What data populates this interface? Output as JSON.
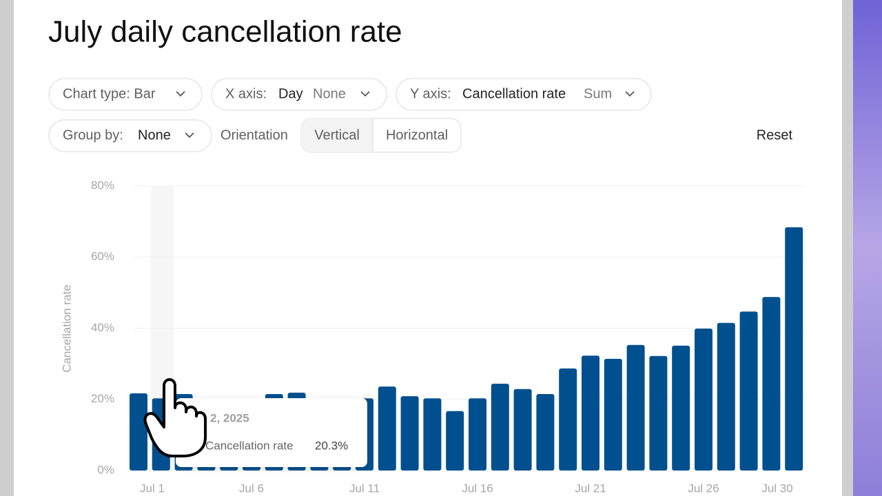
{
  "controls": {
    "chart_type": "Chart type: Bar",
    "x_axis": {
      "label": "X axis:",
      "field": "Day",
      "agg": "None"
    },
    "y_axis": {
      "label": "Y axis:",
      "field": "Cancellation rate",
      "agg": "Sum"
    },
    "group_by": {
      "label": "Group by:",
      "field": "None"
    },
    "orientation": {
      "label": "Orientation",
      "options": [
        "Vertical",
        "Horizontal"
      ]
    },
    "reset": "Reset"
  },
  "tooltip": {
    "date": "2, 2025",
    "label": "Cancellation rate",
    "value": "20.3%"
  },
  "chart_data": {
    "type": "bar",
    "title": "July daily cancellation rate",
    "ylabel": "Cancellation rate",
    "categories": [
      "Jul 1",
      null,
      null,
      null,
      null,
      "Jul 6",
      null,
      null,
      null,
      null,
      "Jul 11",
      null,
      null,
      null,
      null,
      "Jul 16",
      null,
      null,
      null,
      null,
      "Jul 21",
      null,
      null,
      null,
      null,
      "Jul 26",
      null,
      null,
      null,
      "Jul 30"
    ],
    "values": [
      21.7,
      20.3,
      21.5,
      20,
      20,
      20,
      21.5,
      21.9,
      20,
      20,
      20.3,
      23.6,
      20.9,
      20.3,
      16.7,
      20.3,
      24.4,
      22.9,
      21.5,
      28.7,
      32.3,
      31.4,
      35.3,
      32.2,
      35.1,
      39.9,
      41.5,
      44.7,
      48.8,
      68.4
    ],
    "color": "#00508f",
    "ylim": [
      0,
      80
    ],
    "yticks": [
      {
        "value": 0,
        "label": "0%"
      },
      {
        "value": 20,
        "label": "20%"
      },
      {
        "value": 40,
        "label": "40%"
      },
      {
        "value": 60,
        "label": "60%"
      },
      {
        "value": 80,
        "label": "80%"
      }
    ],
    "grid": true
  }
}
